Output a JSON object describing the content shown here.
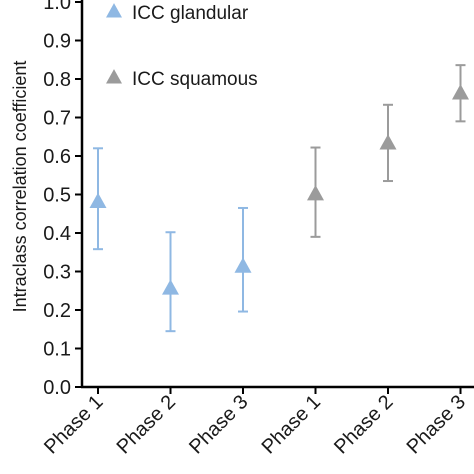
{
  "chart_data": {
    "type": "scatter",
    "title": "",
    "xlabel": "",
    "ylabel": "Intraclass correlation coefficient",
    "ylim": [
      0,
      1.0
    ],
    "yticks": [
      0,
      0.1,
      0.2,
      0.3,
      0.4,
      0.5,
      0.6,
      0.7,
      0.8,
      0.9,
      1.0
    ],
    "ytick_labels": [
      "0.0",
      "0.1",
      "0.2",
      "0.3",
      "0.4",
      "0.5",
      "0.6",
      "0.7",
      "0.8",
      "0.9",
      "1.0"
    ],
    "categories": [
      "Phase 1",
      "Phase 2",
      "Phase 3",
      "Phase 1",
      "Phase 2",
      "Phase 3"
    ],
    "grid": false,
    "legend_position": "top-left",
    "series": [
      {
        "name": "ICC glandular",
        "color": "#8fb8e3",
        "marker": "triangle",
        "x_index": [
          0,
          1,
          2
        ],
        "values": [
          0.48,
          0.255,
          0.312
        ],
        "lower": [
          0.358,
          0.145,
          0.196
        ],
        "upper": [
          0.62,
          0.402,
          0.465
        ]
      },
      {
        "name": "ICC squamous",
        "color": "#9b9b9b",
        "marker": "triangle",
        "x_index": [
          3,
          4,
          5
        ],
        "values": [
          0.5,
          0.632,
          0.762
        ],
        "lower": [
          0.39,
          0.535,
          0.69
        ],
        "upper": [
          0.622,
          0.733,
          0.836
        ]
      }
    ]
  }
}
